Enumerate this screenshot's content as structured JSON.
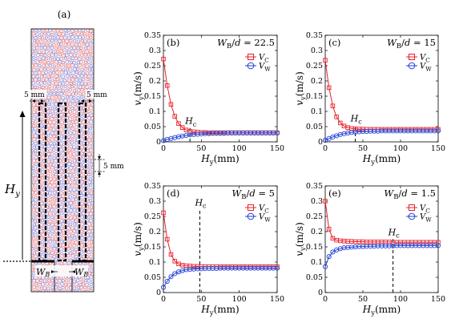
{
  "schematic": {
    "label": "(a)",
    "dim_5mm_left": "5 mm",
    "dim_5mm_right": "5 mm",
    "dim_5mm_side": "5 mm",
    "height_main": "H",
    "height_sub": "y",
    "width_main": "W",
    "width_sub": "B"
  },
  "colors": {
    "center": "#e8202a",
    "wall": "#1f3fd6",
    "grain_red": "#e36a6a",
    "grain_blue": "#6a7ee0"
  },
  "chart_data": [
    {
      "type": "line",
      "panel_label": "(b)",
      "annotation": "W_B/d = 22.5",
      "hc_label": "H_c",
      "hc": 35,
      "xlabel": "H_y(mm)",
      "ylabel": "v_y(m/s)",
      "xlim": [
        0,
        150
      ],
      "ylim": [
        0,
        0.35
      ],
      "xticks": [
        0,
        50,
        100,
        150
      ],
      "yticks": [
        0,
        0.05,
        0.1,
        0.15,
        0.2,
        0.25,
        0.3,
        0.35
      ],
      "x": [
        0,
        5,
        10,
        15,
        20,
        25,
        30,
        35,
        40,
        45,
        50,
        55,
        60,
        65,
        70,
        75,
        80,
        85,
        90,
        95,
        100,
        105,
        110,
        115,
        120,
        125,
        130,
        135,
        140,
        145,
        150
      ],
      "series": [
        {
          "name": "V_C",
          "marker": "square",
          "values": [
            0.272,
            0.185,
            0.123,
            0.084,
            0.06,
            0.047,
            0.039,
            0.035,
            0.033,
            0.032,
            0.031,
            0.031,
            0.03,
            0.03,
            0.03,
            0.03,
            0.03,
            0.03,
            0.03,
            0.03,
            0.03,
            0.03,
            0.03,
            0.03,
            0.03,
            0.03,
            0.03,
            0.03,
            0.03,
            0.03,
            0.03
          ]
        },
        {
          "name": "V_W",
          "marker": "circle",
          "values": [
            0.004,
            0.008,
            0.011,
            0.014,
            0.017,
            0.019,
            0.021,
            0.023,
            0.024,
            0.025,
            0.026,
            0.027,
            0.027,
            0.028,
            0.028,
            0.028,
            0.028,
            0.029,
            0.029,
            0.029,
            0.029,
            0.029,
            0.029,
            0.029,
            0.029,
            0.029,
            0.029,
            0.029,
            0.029,
            0.029,
            0.029
          ]
        }
      ]
    },
    {
      "type": "line",
      "panel_label": "(c)",
      "annotation": "W_B/d = 15",
      "hc_label": "H_c",
      "hc": 40,
      "xlabel": "H_y(mm)",
      "ylabel": "v_y(m/s)",
      "xlim": [
        0,
        150
      ],
      "ylim": [
        0,
        0.35
      ],
      "xticks": [
        0,
        50,
        100,
        150
      ],
      "yticks": [
        0,
        0.05,
        0.1,
        0.15,
        0.2,
        0.25,
        0.3,
        0.35
      ],
      "x": [
        0,
        5,
        10,
        15,
        20,
        25,
        30,
        35,
        40,
        45,
        50,
        55,
        60,
        65,
        70,
        75,
        80,
        85,
        90,
        95,
        100,
        105,
        110,
        115,
        120,
        125,
        130,
        135,
        140,
        145,
        150
      ],
      "series": [
        {
          "name": "V_C",
          "marker": "square",
          "values": [
            0.268,
            0.178,
            0.118,
            0.082,
            0.062,
            0.052,
            0.047,
            0.044,
            0.043,
            0.042,
            0.042,
            0.041,
            0.041,
            0.041,
            0.041,
            0.041,
            0.041,
            0.041,
            0.041,
            0.041,
            0.041,
            0.041,
            0.041,
            0.041,
            0.041,
            0.041,
            0.041,
            0.041,
            0.041,
            0.041,
            0.041
          ]
        },
        {
          "name": "V_W",
          "marker": "circle",
          "values": [
            0.005,
            0.011,
            0.016,
            0.02,
            0.024,
            0.027,
            0.029,
            0.031,
            0.032,
            0.033,
            0.034,
            0.034,
            0.035,
            0.035,
            0.035,
            0.036,
            0.036,
            0.036,
            0.036,
            0.036,
            0.036,
            0.036,
            0.036,
            0.036,
            0.036,
            0.036,
            0.036,
            0.036,
            0.036,
            0.036,
            0.036
          ]
        }
      ]
    },
    {
      "type": "line",
      "panel_label": "(d)",
      "annotation": "W_B/d = 5",
      "hc_label": "H_c",
      "hc": 48,
      "xlabel": "H_y(mm)",
      "ylabel": "v_y(m/s)",
      "xlim": [
        0,
        150
      ],
      "ylim": [
        0,
        0.35
      ],
      "xticks": [
        0,
        50,
        100,
        150
      ],
      "yticks": [
        0,
        0.05,
        0.1,
        0.15,
        0.2,
        0.25,
        0.3,
        0.35
      ],
      "x": [
        0,
        5,
        10,
        15,
        20,
        25,
        30,
        35,
        40,
        45,
        50,
        55,
        60,
        65,
        70,
        75,
        80,
        85,
        90,
        95,
        100,
        105,
        110,
        115,
        120,
        125,
        130,
        135,
        140,
        145,
        150
      ],
      "series": [
        {
          "name": "V_C",
          "marker": "square",
          "values": [
            0.262,
            0.175,
            0.125,
            0.103,
            0.094,
            0.09,
            0.088,
            0.087,
            0.086,
            0.086,
            0.085,
            0.085,
            0.085,
            0.085,
            0.085,
            0.085,
            0.085,
            0.085,
            0.085,
            0.085,
            0.085,
            0.085,
            0.085,
            0.085,
            0.085,
            0.085,
            0.085,
            0.085,
            0.085,
            0.085,
            0.085
          ]
        },
        {
          "name": "V_W",
          "marker": "circle",
          "values": [
            0.017,
            0.037,
            0.052,
            0.062,
            0.068,
            0.072,
            0.075,
            0.076,
            0.077,
            0.078,
            0.078,
            0.079,
            0.079,
            0.079,
            0.079,
            0.08,
            0.08,
            0.08,
            0.08,
            0.08,
            0.08,
            0.08,
            0.08,
            0.08,
            0.08,
            0.08,
            0.08,
            0.08,
            0.08,
            0.08,
            0.08
          ]
        }
      ]
    },
    {
      "type": "line",
      "panel_label": "(e)",
      "annotation": "W_B/d = 1.5",
      "hc_label": "H_c",
      "hc": 90,
      "xlabel": "H_y(mm)",
      "ylabel": "v_y(m/s)",
      "xlim": [
        0,
        150
      ],
      "ylim": [
        0,
        0.35
      ],
      "xticks": [
        0,
        50,
        100,
        150
      ],
      "yticks": [
        0,
        0.05,
        0.1,
        0.15,
        0.2,
        0.25,
        0.3,
        0.35
      ],
      "x": [
        0,
        5,
        10,
        15,
        20,
        25,
        30,
        35,
        40,
        45,
        50,
        55,
        60,
        65,
        70,
        75,
        80,
        85,
        90,
        95,
        100,
        105,
        110,
        115,
        120,
        125,
        130,
        135,
        140,
        145,
        150
      ],
      "series": [
        {
          "name": "V_C",
          "marker": "square",
          "values": [
            0.3,
            0.208,
            0.178,
            0.172,
            0.17,
            0.169,
            0.168,
            0.168,
            0.167,
            0.167,
            0.167,
            0.166,
            0.166,
            0.166,
            0.166,
            0.166,
            0.166,
            0.166,
            0.165,
            0.165,
            0.165,
            0.165,
            0.165,
            0.165,
            0.165,
            0.165,
            0.165,
            0.165,
            0.165,
            0.165,
            0.165
          ]
        },
        {
          "name": "V_W",
          "marker": "circle",
          "values": [
            0.085,
            0.118,
            0.133,
            0.14,
            0.144,
            0.147,
            0.148,
            0.149,
            0.15,
            0.151,
            0.151,
            0.152,
            0.152,
            0.152,
            0.153,
            0.153,
            0.153,
            0.153,
            0.153,
            0.154,
            0.154,
            0.154,
            0.154,
            0.154,
            0.154,
            0.154,
            0.154,
            0.154,
            0.154,
            0.154,
            0.154
          ]
        }
      ]
    }
  ]
}
